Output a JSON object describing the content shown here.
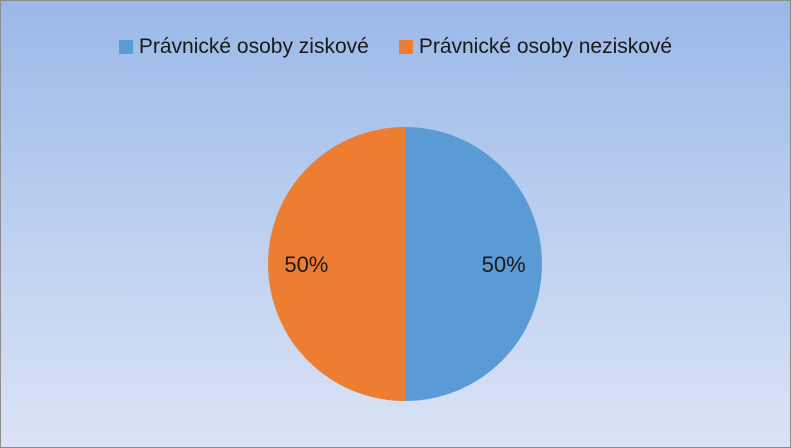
{
  "chart_data": {
    "type": "pie",
    "title": "",
    "legend_position": "top",
    "slices": [
      {
        "label": "Právnické osoby ziskové",
        "value": 50,
        "value_label": "50%",
        "color": "#5b9bd5"
      },
      {
        "label": "Právnické osoby neziskové",
        "value": 50,
        "value_label": "50%",
        "color": "#ed7d31"
      }
    ]
  }
}
